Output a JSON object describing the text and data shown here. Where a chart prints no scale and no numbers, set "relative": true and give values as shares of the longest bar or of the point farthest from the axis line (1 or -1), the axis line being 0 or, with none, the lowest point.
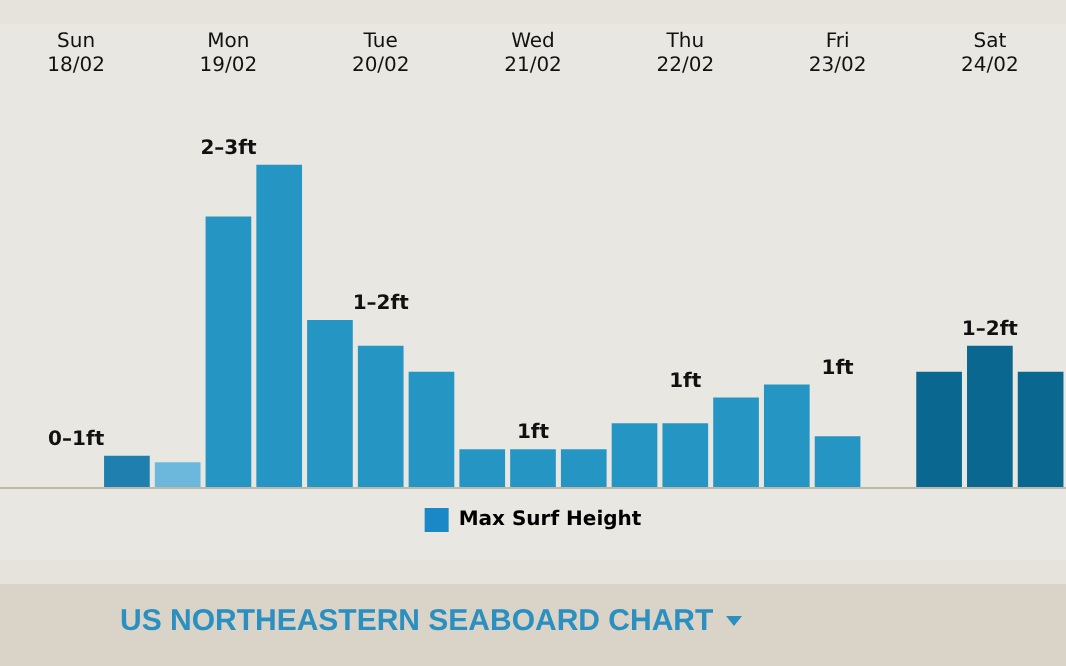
{
  "chart_data": {
    "type": "bar",
    "relative": true,
    "categories": [
      null,
      "Sun 18/02",
      null,
      null,
      "Mon 19/02",
      null,
      null,
      "Tue 20/02",
      null,
      null,
      "Wed 21/02",
      null,
      null,
      "Thu 22/02",
      null,
      null,
      "Fri 23/02",
      null,
      null,
      "Sat 24/02",
      null
    ],
    "series": [
      {
        "name": "Max Surf Height",
        "color": "#1a88c6",
        "values": [
          null,
          null,
          0.1,
          0.08,
          0.84,
          1,
          0.52,
          0.44,
          0.36,
          0.12,
          0.12,
          0.12,
          0.2,
          0.2,
          0.28,
          0.32,
          0.16,
          null,
          0.36,
          0.44,
          0.36
        ],
        "colors": [
          "#2596c4",
          "#2596c4",
          "#1f7fae",
          "#6bb8dc",
          "#2596c4",
          "#2596c4",
          "#2596c4",
          "#2596c4",
          "#2596c4",
          "#2596c4",
          "#2596c4",
          "#2596c4",
          "#2596c4",
          "#2596c4",
          "#2596c4",
          "#2596c4",
          "#2596c4",
          "#2596c4",
          "#0a6890",
          "#0a6890",
          "#0a6890"
        ]
      }
    ],
    "legend": "bottom",
    "grid": false,
    "annotations": [
      "0–1ft",
      "2–3ft",
      "1–2ft",
      "1ft",
      "1ft",
      "1ft",
      "1–2ft",
      "US NORTHEASTERN SEABOARD CHART"
    ]
  }
}
